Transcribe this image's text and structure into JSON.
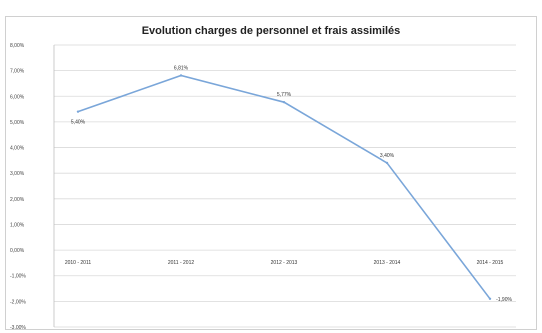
{
  "chart_data": {
    "type": "line",
    "title": "Evolution charges de personnel et frais assimilés",
    "categories": [
      "2010 - 2011",
      "2011 - 2012",
      "2012 - 2013",
      "2013 - 2014",
      "2014 - 2015"
    ],
    "series": [
      {
        "values": [
          5.4,
          6.81,
          5.77,
          3.4,
          -1.9
        ],
        "labels": [
          "5,40%",
          "6,81%",
          "5,77%",
          "3,40%",
          "-1,90%"
        ],
        "color": "#7aa6d9"
      }
    ],
    "yticks": [
      {
        "value": 8,
        "label": "8,00%"
      },
      {
        "value": 7,
        "label": "7,00%"
      },
      {
        "value": 6,
        "label": "6,00%"
      },
      {
        "value": 5,
        "label": "5,00%"
      },
      {
        "value": 4,
        "label": "4,00%"
      },
      {
        "value": 3,
        "label": "3,00%"
      },
      {
        "value": 2,
        "label": "2,00%"
      },
      {
        "value": 1,
        "label": "1,00%"
      },
      {
        "value": 0,
        "label": "0,00%"
      },
      {
        "value": -1,
        "label": "-1,00%"
      },
      {
        "value": -2,
        "label": "-2,00%"
      },
      {
        "value": -3,
        "label": "-3,00%"
      }
    ],
    "ylim": [
      -3,
      8
    ],
    "grid": true,
    "legend": "none"
  }
}
